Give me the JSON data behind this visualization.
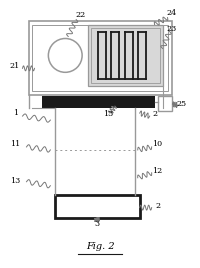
{
  "bg_color": "#ffffff",
  "line_color": "#999999",
  "dark_color": "#1a1a1a",
  "gray_fill": "#d8d8d8",
  "fig_label": "Fig. 2"
}
